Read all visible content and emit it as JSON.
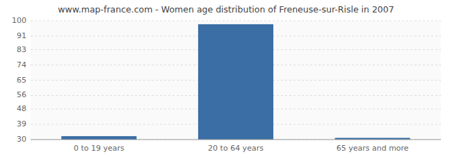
{
  "chart_data": {
    "type": "bar",
    "title": "www.map-france.com - Women age distribution of Freneuse-sur-Risle in 2007",
    "categories": [
      "0 to 19 years",
      "20 to 64 years",
      "65 years and more"
    ],
    "values": [
      32,
      98,
      31
    ],
    "color": "#3a6ea5",
    "ylim": [
      30,
      100
    ],
    "yticks": [
      30,
      39,
      48,
      56,
      65,
      74,
      83,
      91,
      100
    ],
    "grid": true
  }
}
